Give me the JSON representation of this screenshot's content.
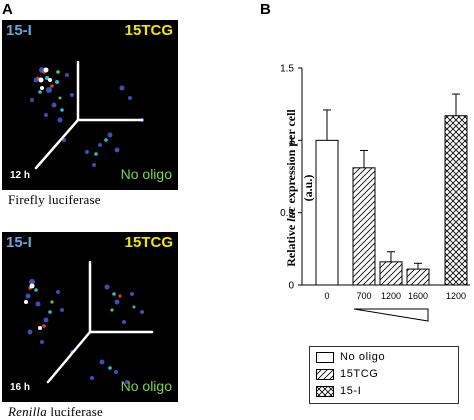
{
  "figure": {
    "panel_a_label": "A",
    "panel_b_label": "B"
  },
  "panel_a": {
    "top_image": {
      "left_tag": "15-I",
      "right_tag": "15TCG",
      "time": "12 h",
      "bottom_tag": "No oligo",
      "caption": "Firefly luciferase"
    },
    "bottom_image": {
      "left_tag": "15-I",
      "right_tag": "15TCG",
      "time": "16 h",
      "bottom_tag": "No oligo",
      "caption_italic": "Renilla",
      "caption_rest": " luciferase"
    },
    "colors": {
      "left_tag": "#6aa6d8",
      "right_tag": "#f2e600",
      "bottom_tag": "#7bd84c"
    }
  },
  "panel_b": {
    "ylabel_pre": "Relative ",
    "ylabel_italic": "luc",
    "ylabel_post": " expression per cell",
    "yunit": "(a.u.)",
    "legend": [
      {
        "label": "No   oligo",
        "pattern": "none"
      },
      {
        "label": "15TCG",
        "pattern": "diagonal"
      },
      {
        "label": "15-I",
        "pattern": "crosshatch"
      }
    ]
  },
  "chart_data": {
    "type": "bar",
    "categories": [
      "0",
      "700",
      "1200",
      "1600",
      "1200"
    ],
    "values": [
      1.0,
      0.81,
      0.16,
      0.11,
      1.17
    ],
    "errors": [
      0.21,
      0.12,
      0.07,
      0.04,
      0.15
    ],
    "patterns": [
      "none",
      "diagonal",
      "diagonal",
      "diagonal",
      "crosshatch"
    ],
    "ylim": [
      0,
      1.5
    ],
    "yticks": [
      "0",
      "0.5",
      "1",
      "1.5"
    ],
    "ylabel": "Relative luc expression per cell (a.u.)",
    "xlabel": "",
    "legend_position": "below"
  }
}
